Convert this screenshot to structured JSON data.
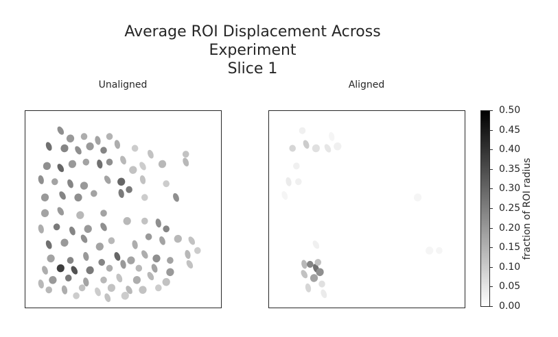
{
  "title": [
    "Average ROI Displacement Across",
    "Experiment",
    "Slice 1"
  ],
  "panels": [
    {
      "subtitle": "Unaligned"
    },
    {
      "subtitle": "Aligned"
    }
  ],
  "colorbar": {
    "label": "fraction of ROI radius",
    "colormap": "gray_r",
    "ticks": [
      "0.50",
      "0.45",
      "0.40",
      "0.35",
      "0.30",
      "0.25",
      "0.20",
      "0.15",
      "0.10",
      "0.05",
      "0.00"
    ],
    "range": [
      0.0,
      0.5
    ]
  },
  "chart_data": {
    "type": "heatmap",
    "title": "Average ROI Displacement Across Experiment Slice 1",
    "colorbar_label": "fraction of ROI radius",
    "vmin": 0.0,
    "vmax": 0.5,
    "panels": [
      {
        "name": "Unaligned",
        "rois": [
          [
            0.18,
            0.1,
            0.22
          ],
          [
            0.23,
            0.14,
            0.2
          ],
          [
            0.3,
            0.13,
            0.16
          ],
          [
            0.37,
            0.15,
            0.18
          ],
          [
            0.43,
            0.13,
            0.15
          ],
          [
            0.12,
            0.18,
            0.28
          ],
          [
            0.2,
            0.19,
            0.24
          ],
          [
            0.27,
            0.2,
            0.22
          ],
          [
            0.33,
            0.18,
            0.2
          ],
          [
            0.4,
            0.2,
            0.24
          ],
          [
            0.47,
            0.17,
            0.16
          ],
          [
            0.56,
            0.19,
            0.1
          ],
          [
            0.64,
            0.22,
            0.12
          ],
          [
            0.11,
            0.28,
            0.22
          ],
          [
            0.18,
            0.29,
            0.3
          ],
          [
            0.24,
            0.27,
            0.2
          ],
          [
            0.31,
            0.26,
            0.18
          ],
          [
            0.38,
            0.27,
            0.28
          ],
          [
            0.43,
            0.26,
            0.22
          ],
          [
            0.5,
            0.25,
            0.14
          ],
          [
            0.55,
            0.3,
            0.12
          ],
          [
            0.6,
            0.28,
            0.1
          ],
          [
            0.7,
            0.27,
            0.14
          ],
          [
            0.82,
            0.22,
            0.12
          ],
          [
            0.08,
            0.35,
            0.22
          ],
          [
            0.15,
            0.36,
            0.18
          ],
          [
            0.23,
            0.37,
            0.24
          ],
          [
            0.3,
            0.38,
            0.2
          ],
          [
            0.42,
            0.35,
            0.18
          ],
          [
            0.49,
            0.36,
            0.3
          ],
          [
            0.53,
            0.4,
            0.26
          ],
          [
            0.6,
            0.35,
            0.12
          ],
          [
            0.72,
            0.37,
            0.1
          ],
          [
            0.82,
            0.26,
            0.14
          ],
          [
            0.1,
            0.44,
            0.2
          ],
          [
            0.19,
            0.43,
            0.24
          ],
          [
            0.27,
            0.44,
            0.22
          ],
          [
            0.35,
            0.42,
            0.18
          ],
          [
            0.49,
            0.42,
            0.26
          ],
          [
            0.61,
            0.44,
            0.1
          ],
          [
            0.77,
            0.44,
            0.22
          ],
          [
            0.1,
            0.52,
            0.18
          ],
          [
            0.18,
            0.51,
            0.2
          ],
          [
            0.28,
            0.53,
            0.14
          ],
          [
            0.4,
            0.52,
            0.18
          ],
          [
            0.08,
            0.6,
            0.16
          ],
          [
            0.16,
            0.59,
            0.26
          ],
          [
            0.24,
            0.61,
            0.24
          ],
          [
            0.32,
            0.6,
            0.2
          ],
          [
            0.4,
            0.59,
            0.22
          ],
          [
            0.52,
            0.56,
            0.14
          ],
          [
            0.61,
            0.56,
            0.12
          ],
          [
            0.68,
            0.57,
            0.22
          ],
          [
            0.72,
            0.6,
            0.24
          ],
          [
            0.12,
            0.68,
            0.28
          ],
          [
            0.2,
            0.67,
            0.2
          ],
          [
            0.3,
            0.65,
            0.22
          ],
          [
            0.38,
            0.69,
            0.18
          ],
          [
            0.44,
            0.66,
            0.14
          ],
          [
            0.56,
            0.68,
            0.16
          ],
          [
            0.63,
            0.64,
            0.2
          ],
          [
            0.7,
            0.66,
            0.18
          ],
          [
            0.78,
            0.65,
            0.14
          ],
          [
            0.85,
            0.66,
            0.12
          ],
          [
            0.13,
            0.75,
            0.18
          ],
          [
            0.23,
            0.76,
            0.24
          ],
          [
            0.31,
            0.74,
            0.2
          ],
          [
            0.39,
            0.77,
            0.24
          ],
          [
            0.47,
            0.74,
            0.3
          ],
          [
            0.54,
            0.76,
            0.18
          ],
          [
            0.61,
            0.73,
            0.16
          ],
          [
            0.67,
            0.75,
            0.22
          ],
          [
            0.74,
            0.76,
            0.18
          ],
          [
            0.83,
            0.73,
            0.14
          ],
          [
            0.88,
            0.71,
            0.1
          ],
          [
            0.1,
            0.81,
            0.16
          ],
          [
            0.18,
            0.8,
            0.38
          ],
          [
            0.25,
            0.81,
            0.34
          ],
          [
            0.33,
            0.81,
            0.26
          ],
          [
            0.43,
            0.8,
            0.16
          ],
          [
            0.5,
            0.78,
            0.2
          ],
          [
            0.58,
            0.8,
            0.14
          ],
          [
            0.66,
            0.8,
            0.18
          ],
          [
            0.74,
            0.82,
            0.2
          ],
          [
            0.84,
            0.78,
            0.12
          ],
          [
            0.14,
            0.86,
            0.2
          ],
          [
            0.22,
            0.85,
            0.26
          ],
          [
            0.31,
            0.87,
            0.18
          ],
          [
            0.4,
            0.86,
            0.14
          ],
          [
            0.48,
            0.85,
            0.12
          ],
          [
            0.57,
            0.86,
            0.16
          ],
          [
            0.64,
            0.84,
            0.14
          ],
          [
            0.72,
            0.87,
            0.12
          ],
          [
            0.12,
            0.91,
            0.14
          ],
          [
            0.2,
            0.91,
            0.16
          ],
          [
            0.29,
            0.9,
            0.12
          ],
          [
            0.37,
            0.92,
            0.1
          ],
          [
            0.44,
            0.9,
            0.12
          ],
          [
            0.53,
            0.91,
            0.14
          ],
          [
            0.6,
            0.91,
            0.12
          ],
          [
            0.68,
            0.9,
            0.1
          ],
          [
            0.08,
            0.88,
            0.14
          ],
          [
            0.26,
            0.94,
            0.1
          ],
          [
            0.42,
            0.95,
            0.12
          ],
          [
            0.51,
            0.94,
            0.1
          ]
        ]
      },
      {
        "name": "Aligned",
        "rois": [
          [
            0.17,
            0.1,
            0.03
          ],
          [
            0.32,
            0.13,
            0.02
          ],
          [
            0.12,
            0.19,
            0.08
          ],
          [
            0.19,
            0.17,
            0.1
          ],
          [
            0.24,
            0.19,
            0.06
          ],
          [
            0.3,
            0.19,
            0.05
          ],
          [
            0.35,
            0.18,
            0.03
          ],
          [
            0.14,
            0.28,
            0.03
          ],
          [
            0.1,
            0.36,
            0.04
          ],
          [
            0.15,
            0.36,
            0.03
          ],
          [
            0.08,
            0.43,
            0.02
          ],
          [
            0.76,
            0.44,
            0.02
          ],
          [
            0.24,
            0.68,
            0.03
          ],
          [
            0.82,
            0.71,
            0.02
          ],
          [
            0.87,
            0.71,
            0.02
          ],
          [
            0.18,
            0.78,
            0.14
          ],
          [
            0.21,
            0.78,
            0.24
          ],
          [
            0.24,
            0.8,
            0.28
          ],
          [
            0.26,
            0.82,
            0.22
          ],
          [
            0.18,
            0.83,
            0.12
          ],
          [
            0.23,
            0.85,
            0.18
          ],
          [
            0.25,
            0.77,
            0.12
          ],
          [
            0.2,
            0.9,
            0.08
          ],
          [
            0.27,
            0.88,
            0.06
          ],
          [
            0.28,
            0.93,
            0.04
          ]
        ]
      }
    ]
  }
}
